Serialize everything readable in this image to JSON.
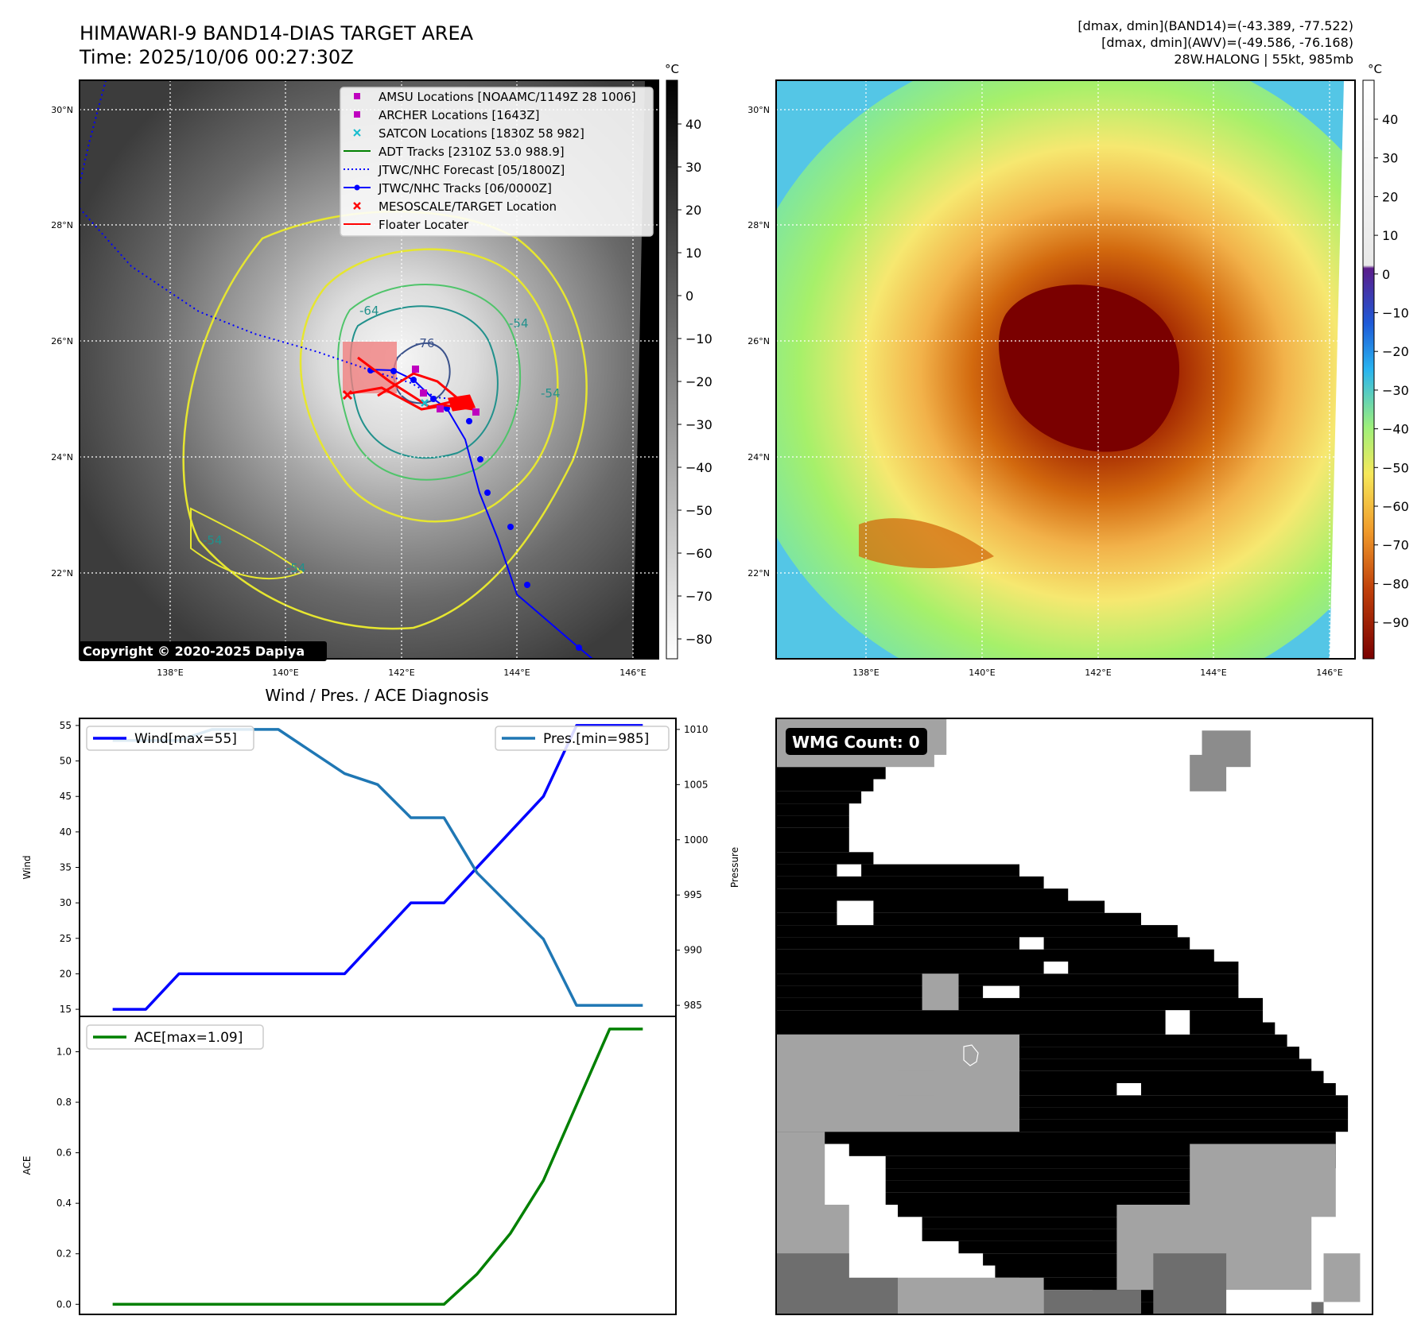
{
  "header": {
    "title_line1": "HIMAWARI-9 BAND14-DIAS TARGET AREA",
    "title_line2": "Time: 2025/10/06 00:27:30Z",
    "stats_line1": "[dmax, dmin](BAND14)=(-43.389, -77.522)",
    "stats_line2": "[dmax, dmin](AWV)=(-49.586, -76.168)",
    "stats_line3": "28W.HALONG | 55kt, 985mb"
  },
  "map_axes": {
    "lat_labels": [
      "30°N",
      "28°N",
      "26°N",
      "24°N",
      "22°N"
    ],
    "lon_labels": [
      "138°E",
      "140°E",
      "142°E",
      "144°E",
      "146°E"
    ],
    "copyright": "Copyright © 2020-2025 Dapiya"
  },
  "legend": {
    "items": [
      {
        "label": "AMSU Locations [NOAAMC/1149Z 28 1006]",
        "color": "#bf00bf",
        "marker": "square"
      },
      {
        "label": "ARCHER Locations [1643Z]",
        "color": "#bf00bf",
        "marker": "square"
      },
      {
        "label": "SATCON Locations [1830Z 58 982]",
        "color": "#17becf",
        "marker": "x"
      },
      {
        "label": "ADT Tracks [2310Z 53.0 988.9]",
        "color": "#008000",
        "marker": "line"
      },
      {
        "label": "JTWC/NHC Forecast [05/1800Z]",
        "color": "#0000ff",
        "marker": "dotted"
      },
      {
        "label": "JTWC/NHC Tracks [06/0000Z]",
        "color": "#0000ff",
        "marker": "line-dot"
      },
      {
        "label": "MESOSCALE/TARGET Location",
        "color": "#ff0000",
        "marker": "x"
      },
      {
        "label": "Floater Locater",
        "color": "#ff0000",
        "marker": "line"
      }
    ]
  },
  "contours": {
    "labels": [
      "-64",
      "-76",
      "-54",
      "-54",
      "-54",
      "-54"
    ]
  },
  "colorbar_gray": {
    "unit": "°C",
    "ticks": [
      "40",
      "30",
      "20",
      "10",
      "0",
      "−10",
      "−20",
      "−30",
      "−40",
      "−50",
      "−60",
      "−70",
      "−80"
    ]
  },
  "colorbar_color": {
    "unit": "°C",
    "ticks": [
      "40",
      "30",
      "20",
      "10",
      "0",
      "−10",
      "−20",
      "−30",
      "−40",
      "−50",
      "−60",
      "−70",
      "−80",
      "−90"
    ]
  },
  "diagnosis": {
    "title": "Wind / Pres. / ACE Diagnosis"
  },
  "wmg": {
    "label": "WMG Count: 0"
  },
  "chart_data": [
    {
      "type": "line",
      "title": "Wind / Pres. / ACE Diagnosis",
      "ylabel": "Wind",
      "y2label": "Pressure",
      "ylim": [
        14,
        56
      ],
      "y2lim": [
        984,
        1011
      ],
      "yticks": [
        15,
        20,
        25,
        30,
        35,
        40,
        45,
        50,
        55
      ],
      "y2ticks": [
        985,
        990,
        995,
        1000,
        1005,
        1010
      ],
      "x": [
        0,
        1,
        2,
        3,
        4,
        5,
        6,
        7,
        8,
        9,
        10,
        11,
        12,
        13,
        14,
        15,
        16
      ],
      "series": [
        {
          "name": "Wind[max=55]",
          "axis": "left",
          "color": "#0000ff",
          "values": [
            15,
            15,
            20,
            20,
            20,
            20,
            20,
            20,
            25,
            30,
            30,
            35,
            40,
            45,
            55,
            55,
            55
          ]
        },
        {
          "name": "Pres.[min=985]",
          "axis": "right",
          "color": "#1f77b4",
          "values": [
            1009,
            1009,
            1009,
            1010,
            1010,
            1010,
            1008,
            1006,
            1005,
            1002,
            1002,
            997,
            994,
            991,
            985,
            985,
            985
          ]
        }
      ]
    },
    {
      "type": "line",
      "ylabel": "ACE",
      "ylim": [
        -0.04,
        1.14
      ],
      "yticks": [
        0.0,
        0.2,
        0.4,
        0.6,
        0.8,
        1.0
      ],
      "ytick_labels": [
        "0.0",
        "0.2",
        "0.4",
        "0.6",
        "0.8",
        "1.0"
      ],
      "x": [
        0,
        1,
        2,
        3,
        4,
        5,
        6,
        7,
        8,
        9,
        10,
        11,
        12,
        13,
        14,
        15,
        16
      ],
      "series": [
        {
          "name": "ACE[max=1.09]",
          "color": "#008000",
          "values": [
            0,
            0,
            0,
            0,
            0,
            0,
            0,
            0,
            0,
            0,
            0,
            0.12,
            0.28,
            0.49,
            0.79,
            1.09,
            1.09
          ]
        }
      ]
    }
  ]
}
